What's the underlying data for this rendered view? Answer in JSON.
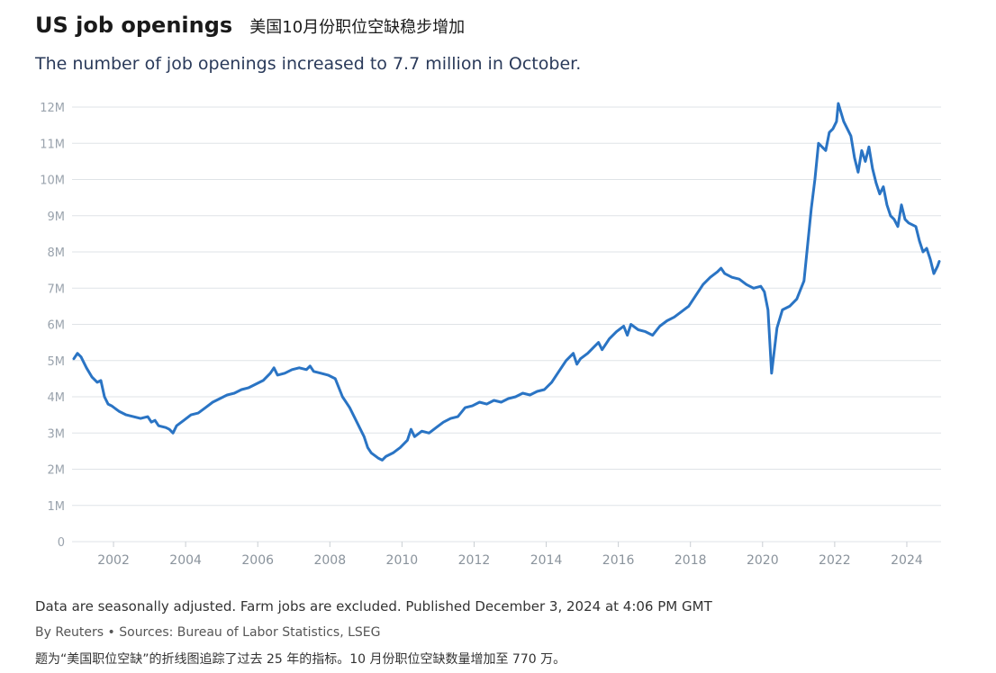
{
  "header": {
    "title": "US job openings",
    "title_cn": "美国10月份职位空缺稳步增加",
    "subtitle": "The number of job openings increased to 7.7 million in October."
  },
  "footer": {
    "note": "Data are seasonally adjusted. Farm jobs are excluded. Published December 3, 2024 at 4:06 PM GMT",
    "byline": "By Reuters • Sources: Bureau of Labor Statistics, LSEG",
    "caption": "题为“美国职位空缺”的折线图追踪了过去 25 年的指标。10 月份职位空缺数量增加至 770 万。"
  },
  "colors": {
    "line": "#2a74c4",
    "grid": "#dfe3e7"
  },
  "chart_data": {
    "type": "line",
    "title": "US job openings",
    "xlabel": "",
    "ylabel": "",
    "ylim": [
      0,
      12000000
    ],
    "xlim": [
      2000.9,
      2025.0
    ],
    "grid": true,
    "y_ticks": [
      {
        "value": 0,
        "label": "0"
      },
      {
        "value": 1000000,
        "label": "1M"
      },
      {
        "value": 2000000,
        "label": "2M"
      },
      {
        "value": 3000000,
        "label": "3M"
      },
      {
        "value": 4000000,
        "label": "4M"
      },
      {
        "value": 5000000,
        "label": "5M"
      },
      {
        "value": 6000000,
        "label": "6M"
      },
      {
        "value": 7000000,
        "label": "7M"
      },
      {
        "value": 8000000,
        "label": "8M"
      },
      {
        "value": 9000000,
        "label": "9M"
      },
      {
        "value": 10000000,
        "label": "10M"
      },
      {
        "value": 11000000,
        "label": "11M"
      },
      {
        "value": 12000000,
        "label": "12M"
      }
    ],
    "x_ticks": [
      {
        "value": 2002,
        "label": "2002"
      },
      {
        "value": 2004,
        "label": "2004"
      },
      {
        "value": 2006,
        "label": "2006"
      },
      {
        "value": 2008,
        "label": "2008"
      },
      {
        "value": 2010,
        "label": "2010"
      },
      {
        "value": 2012,
        "label": "2012"
      },
      {
        "value": 2014,
        "label": "2014"
      },
      {
        "value": 2016,
        "label": "2016"
      },
      {
        "value": 2018,
        "label": "2018"
      },
      {
        "value": 2020,
        "label": "2020"
      },
      {
        "value": 2022,
        "label": "2022"
      },
      {
        "value": 2024,
        "label": "2024"
      }
    ],
    "series": [
      {
        "name": "Job openings",
        "points": [
          [
            2000.95,
            5.05
          ],
          [
            2001.05,
            5.2
          ],
          [
            2001.15,
            5.1
          ],
          [
            2001.3,
            4.8
          ],
          [
            2001.45,
            4.55
          ],
          [
            2001.6,
            4.4
          ],
          [
            2001.7,
            4.45
          ],
          [
            2001.8,
            4.0
          ],
          [
            2001.9,
            3.8
          ],
          [
            2002.0,
            3.75
          ],
          [
            2002.2,
            3.6
          ],
          [
            2002.4,
            3.5
          ],
          [
            2002.6,
            3.45
          ],
          [
            2002.8,
            3.4
          ],
          [
            2003.0,
            3.45
          ],
          [
            2003.1,
            3.3
          ],
          [
            2003.2,
            3.35
          ],
          [
            2003.3,
            3.2
          ],
          [
            2003.5,
            3.15
          ],
          [
            2003.6,
            3.1
          ],
          [
            2003.7,
            3.0
          ],
          [
            2003.8,
            3.2
          ],
          [
            2004.0,
            3.35
          ],
          [
            2004.2,
            3.5
          ],
          [
            2004.4,
            3.55
          ],
          [
            2004.6,
            3.7
          ],
          [
            2004.8,
            3.85
          ],
          [
            2005.0,
            3.95
          ],
          [
            2005.2,
            4.05
          ],
          [
            2005.4,
            4.1
          ],
          [
            2005.6,
            4.2
          ],
          [
            2005.8,
            4.25
          ],
          [
            2006.0,
            4.35
          ],
          [
            2006.2,
            4.45
          ],
          [
            2006.4,
            4.65
          ],
          [
            2006.5,
            4.8
          ],
          [
            2006.6,
            4.6
          ],
          [
            2006.8,
            4.65
          ],
          [
            2007.0,
            4.75
          ],
          [
            2007.2,
            4.8
          ],
          [
            2007.4,
            4.75
          ],
          [
            2007.5,
            4.85
          ],
          [
            2007.6,
            4.7
          ],
          [
            2007.8,
            4.65
          ],
          [
            2008.0,
            4.6
          ],
          [
            2008.2,
            4.5
          ],
          [
            2008.4,
            4.0
          ],
          [
            2008.6,
            3.7
          ],
          [
            2008.8,
            3.3
          ],
          [
            2009.0,
            2.9
          ],
          [
            2009.1,
            2.6
          ],
          [
            2009.2,
            2.45
          ],
          [
            2009.4,
            2.3
          ],
          [
            2009.5,
            2.25
          ],
          [
            2009.6,
            2.35
          ],
          [
            2009.8,
            2.45
          ],
          [
            2010.0,
            2.6
          ],
          [
            2010.2,
            2.8
          ],
          [
            2010.3,
            3.1
          ],
          [
            2010.4,
            2.9
          ],
          [
            2010.6,
            3.05
          ],
          [
            2010.8,
            3.0
          ],
          [
            2011.0,
            3.15
          ],
          [
            2011.2,
            3.3
          ],
          [
            2011.4,
            3.4
          ],
          [
            2011.6,
            3.45
          ],
          [
            2011.8,
            3.7
          ],
          [
            2012.0,
            3.75
          ],
          [
            2012.2,
            3.85
          ],
          [
            2012.4,
            3.8
          ],
          [
            2012.6,
            3.9
          ],
          [
            2012.8,
            3.85
          ],
          [
            2013.0,
            3.95
          ],
          [
            2013.2,
            4.0
          ],
          [
            2013.4,
            4.1
          ],
          [
            2013.6,
            4.05
          ],
          [
            2013.8,
            4.15
          ],
          [
            2014.0,
            4.2
          ],
          [
            2014.2,
            4.4
          ],
          [
            2014.4,
            4.7
          ],
          [
            2014.6,
            5.0
          ],
          [
            2014.8,
            5.2
          ],
          [
            2014.9,
            4.9
          ],
          [
            2015.0,
            5.05
          ],
          [
            2015.2,
            5.2
          ],
          [
            2015.4,
            5.4
          ],
          [
            2015.5,
            5.5
          ],
          [
            2015.6,
            5.3
          ],
          [
            2015.8,
            5.6
          ],
          [
            2016.0,
            5.8
          ],
          [
            2016.2,
            5.95
          ],
          [
            2016.3,
            5.7
          ],
          [
            2016.4,
            6.0
          ],
          [
            2016.6,
            5.85
          ],
          [
            2016.8,
            5.8
          ],
          [
            2017.0,
            5.7
          ],
          [
            2017.2,
            5.95
          ],
          [
            2017.4,
            6.1
          ],
          [
            2017.6,
            6.2
          ],
          [
            2017.8,
            6.35
          ],
          [
            2018.0,
            6.5
          ],
          [
            2018.2,
            6.8
          ],
          [
            2018.4,
            7.1
          ],
          [
            2018.6,
            7.3
          ],
          [
            2018.8,
            7.45
          ],
          [
            2018.9,
            7.55
          ],
          [
            2019.0,
            7.4
          ],
          [
            2019.2,
            7.3
          ],
          [
            2019.4,
            7.25
          ],
          [
            2019.6,
            7.1
          ],
          [
            2019.8,
            7.0
          ],
          [
            2020.0,
            7.05
          ],
          [
            2020.1,
            6.9
          ],
          [
            2020.2,
            6.4
          ],
          [
            2020.3,
            4.65
          ],
          [
            2020.45,
            5.9
          ],
          [
            2020.6,
            6.4
          ],
          [
            2020.8,
            6.5
          ],
          [
            2021.0,
            6.7
          ],
          [
            2021.2,
            7.2
          ],
          [
            2021.4,
            9.2
          ],
          [
            2021.5,
            10.0
          ],
          [
            2021.6,
            11.0
          ],
          [
            2021.8,
            10.8
          ],
          [
            2021.9,
            11.3
          ],
          [
            2022.0,
            11.4
          ],
          [
            2022.1,
            11.6
          ],
          [
            2022.15,
            12.1
          ],
          [
            2022.3,
            11.6
          ],
          [
            2022.5,
            11.2
          ],
          [
            2022.6,
            10.6
          ],
          [
            2022.7,
            10.2
          ],
          [
            2022.8,
            10.8
          ],
          [
            2022.9,
            10.5
          ],
          [
            2023.0,
            10.9
          ],
          [
            2023.1,
            10.3
          ],
          [
            2023.2,
            9.9
          ],
          [
            2023.3,
            9.6
          ],
          [
            2023.4,
            9.8
          ],
          [
            2023.5,
            9.3
          ],
          [
            2023.6,
            9.0
          ],
          [
            2023.7,
            8.9
          ],
          [
            2023.8,
            8.7
          ],
          [
            2023.9,
            9.3
          ],
          [
            2024.0,
            8.9
          ],
          [
            2024.1,
            8.8
          ],
          [
            2024.3,
            8.7
          ],
          [
            2024.4,
            8.3
          ],
          [
            2024.5,
            8.0
          ],
          [
            2024.6,
            8.1
          ],
          [
            2024.7,
            7.8
          ],
          [
            2024.8,
            7.4
          ],
          [
            2024.9,
            7.6
          ],
          [
            2024.95,
            7.74
          ]
        ]
      }
    ]
  }
}
